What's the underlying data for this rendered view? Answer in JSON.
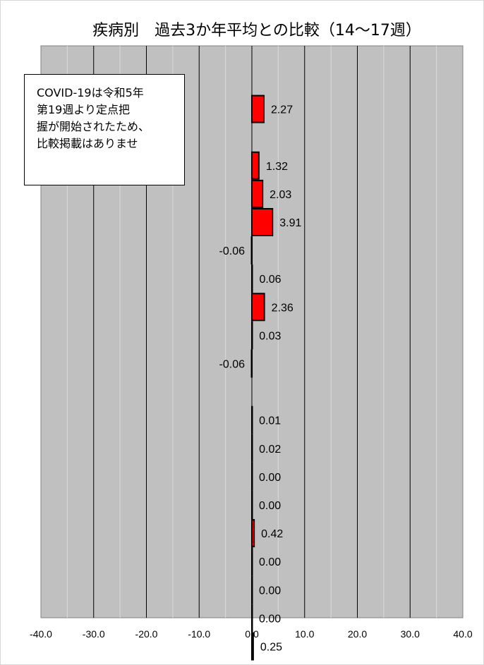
{
  "chart_data": {
    "type": "bar",
    "orientation": "horizontal",
    "title": "疾病別　過去3か年平均との比較（14〜17週）",
    "xlim": [
      -40,
      40
    ],
    "x_ticks": [
      "-40.0",
      "-30.0",
      "-20.0",
      "-10.0",
      "0.0",
      "10.0",
      "20.0",
      "30.0",
      "40.0"
    ],
    "values": [
      null,
      2.27,
      null,
      1.32,
      2.03,
      3.91,
      -0.06,
      0.06,
      2.36,
      0.03,
      -0.06,
      null,
      0.01,
      0.02,
      0.0,
      0.0,
      0.42,
      0.0,
      0.0,
      0.0,
      0.25
    ],
    "labels": [
      "",
      "2.27",
      "",
      "1.32",
      "2.03",
      "3.91",
      "-0.06",
      "0.06",
      "2.36",
      "0.03",
      "-0.06",
      "",
      "0.01",
      "0.02",
      "0.00",
      "0.00",
      "0.42",
      "0.00",
      "0.00",
      "0.00",
      "0.25"
    ],
    "grid": true,
    "colors": {
      "positive_bar": "#ff0000",
      "plot_background": "#c0c0c0",
      "bar_border": "#000000"
    }
  },
  "note": {
    "lines": [
      "COVID-19は令和5年",
      "第19週より定点把",
      "握が開始されたため、",
      "比較掲載はありませ"
    ]
  }
}
